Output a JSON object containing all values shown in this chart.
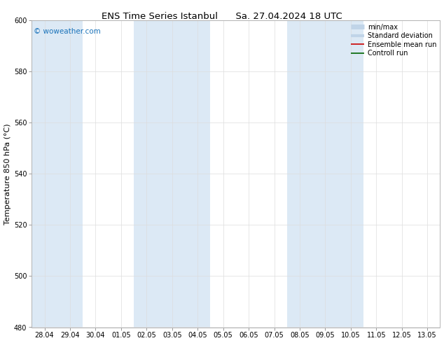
{
  "title": "ENS Time Series Istanbul",
  "subtitle": "Sa. 27.04.2024 18 UTC",
  "ylabel": "Temperature 850 hPa (°C)",
  "xlabels": [
    "28.04",
    "29.04",
    "30.04",
    "01.05",
    "02.05",
    "03.05",
    "04.05",
    "05.05",
    "06.05",
    "07.05",
    "08.05",
    "09.05",
    "10.05",
    "11.05",
    "12.05",
    "13.05"
  ],
  "ylim": [
    480,
    600
  ],
  "yticks": [
    480,
    500,
    520,
    540,
    560,
    580,
    600
  ],
  "background_color": "#ffffff",
  "plot_bg_color": "#ffffff",
  "shaded_band_color": "#dce9f5",
  "watermark": "© woweather.com",
  "watermark_color": "#1a73ba",
  "legend_items": [
    {
      "label": "min/max",
      "color": "#c0d4e8",
      "lw": 5,
      "type": "line"
    },
    {
      "label": "Standard deviation",
      "color": "#c0d4e8",
      "lw": 3,
      "type": "line"
    },
    {
      "label": "Ensemble mean run",
      "color": "#cc0000",
      "lw": 1.2,
      "type": "line"
    },
    {
      "label": "Controll run",
      "color": "#006600",
      "lw": 1.2,
      "type": "line"
    }
  ],
  "shaded_columns": [
    {
      "start": 0,
      "end": 1
    },
    {
      "start": 4,
      "end": 6
    },
    {
      "start": 10,
      "end": 12
    }
  ],
  "title_fontsize": 9.5,
  "tick_fontsize": 7,
  "ylabel_fontsize": 8,
  "watermark_fontsize": 7.5,
  "legend_fontsize": 7,
  "fig_width": 6.34,
  "fig_height": 4.9,
  "dpi": 100
}
